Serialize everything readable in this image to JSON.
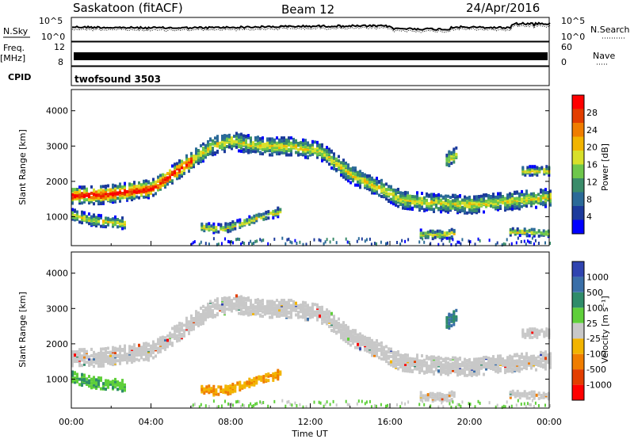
{
  "header": {
    "station": "Saskatoon (fitACF)",
    "beam": "Beam 12",
    "date": "24/Apr/2016"
  },
  "strips": {
    "noise": {
      "left_label": "N.Sky",
      "right_label": "N.Search",
      "left_ticks": [
        "10^5",
        "10^0"
      ],
      "right_ticks": [
        "10^5",
        "10^0"
      ],
      "description_series": [
        "N.Sky",
        "N.Search"
      ]
    },
    "freq": {
      "left_label": "Freq.",
      "left_unit": "[MHz]",
      "left_ticks": [
        "12",
        "8"
      ],
      "right_label": "Nave",
      "right_ticks": [
        "60",
        "0"
      ]
    },
    "cpid": {
      "label": "CPID",
      "program": "twofsound 3503"
    }
  },
  "chart_data": [
    {
      "type": "heatmap",
      "name": "Power",
      "ylabel": "Slant Range [km]",
      "xlabel": "",
      "xlim": [
        "00:00",
        "24:00"
      ],
      "ylim": [
        180,
        4600
      ],
      "y_ticks": [
        1000,
        2000,
        3000,
        4000
      ],
      "colorbar": {
        "label": "Power [dB]",
        "tick_labels": [
          "4",
          "8",
          "12",
          "16",
          "20",
          "24",
          "28"
        ],
        "range": [
          0,
          30
        ],
        "colors": [
          "#0000ff",
          "#1c3a9c",
          "#2b6a98",
          "#3a8c6a",
          "#6ec74b",
          "#d8e02a",
          "#f2b400",
          "#f07d00",
          "#e33e00",
          "#ff0000"
        ]
      },
      "echo_bands": [
        {
          "x": [
            0.0,
            1.5,
            2.5,
            4.0,
            5.5,
            7.0,
            8.0,
            9.5,
            11.0,
            12.5,
            14.0,
            15.5,
            16.5,
            18.0,
            20.0,
            22.0,
            24.0
          ],
          "y": [
            1600,
            1620,
            1700,
            1800,
            2400,
            3000,
            3150,
            3000,
            3000,
            2850,
            2200,
            1800,
            1500,
            1400,
            1350,
            1450,
            1550
          ],
          "width": 250
        },
        {
          "x": [
            0.0,
            1.0,
            2.0,
            2.7
          ],
          "y": [
            1050,
            900,
            850,
            800
          ],
          "width": 150
        },
        {
          "x": [
            6.5,
            7.5,
            8.5,
            9.5,
            10.5
          ],
          "y": [
            700,
            650,
            800,
            1000,
            1150
          ],
          "width": 120
        },
        {
          "x": [
            17.5,
            18.5,
            19.2
          ],
          "y": [
            500,
            500,
            520
          ],
          "width": 120
        },
        {
          "x": [
            22.0,
            23.0,
            24.0
          ],
          "y": [
            580,
            560,
            540
          ],
          "width": 100
        },
        {
          "x": [
            18.8,
            19.3
          ],
          "y": [
            2600,
            2750
          ],
          "width": 220
        },
        {
          "x": [
            22.5,
            24.0
          ],
          "y": [
            2300,
            2300
          ],
          "width": 120
        }
      ]
    },
    {
      "type": "heatmap",
      "name": "Velocity",
      "ylabel": "Slant Range [km]",
      "xlabel": "Time UT",
      "xlim": [
        "00:00",
        "24:00"
      ],
      "ylim": [
        180,
        4600
      ],
      "x_ticks": [
        "00:00",
        "04:00",
        "08:00",
        "12:00",
        "16:00",
        "20:00",
        "00:00"
      ],
      "y_ticks": [
        1000,
        2000,
        3000,
        4000
      ],
      "colorbar": {
        "label": "Velocity [m s⁻¹]",
        "tick_labels": [
          "1000",
          "500",
          "100",
          "25",
          "-25",
          "-100",
          "-500",
          "-1000"
        ],
        "colors": [
          "#3044b0",
          "#3a6fa8",
          "#2f8c6a",
          "#5fcf3a",
          "#c8c8c8",
          "#f2b400",
          "#f07d00",
          "#e33e00",
          "#ff0000"
        ]
      }
    }
  ]
}
